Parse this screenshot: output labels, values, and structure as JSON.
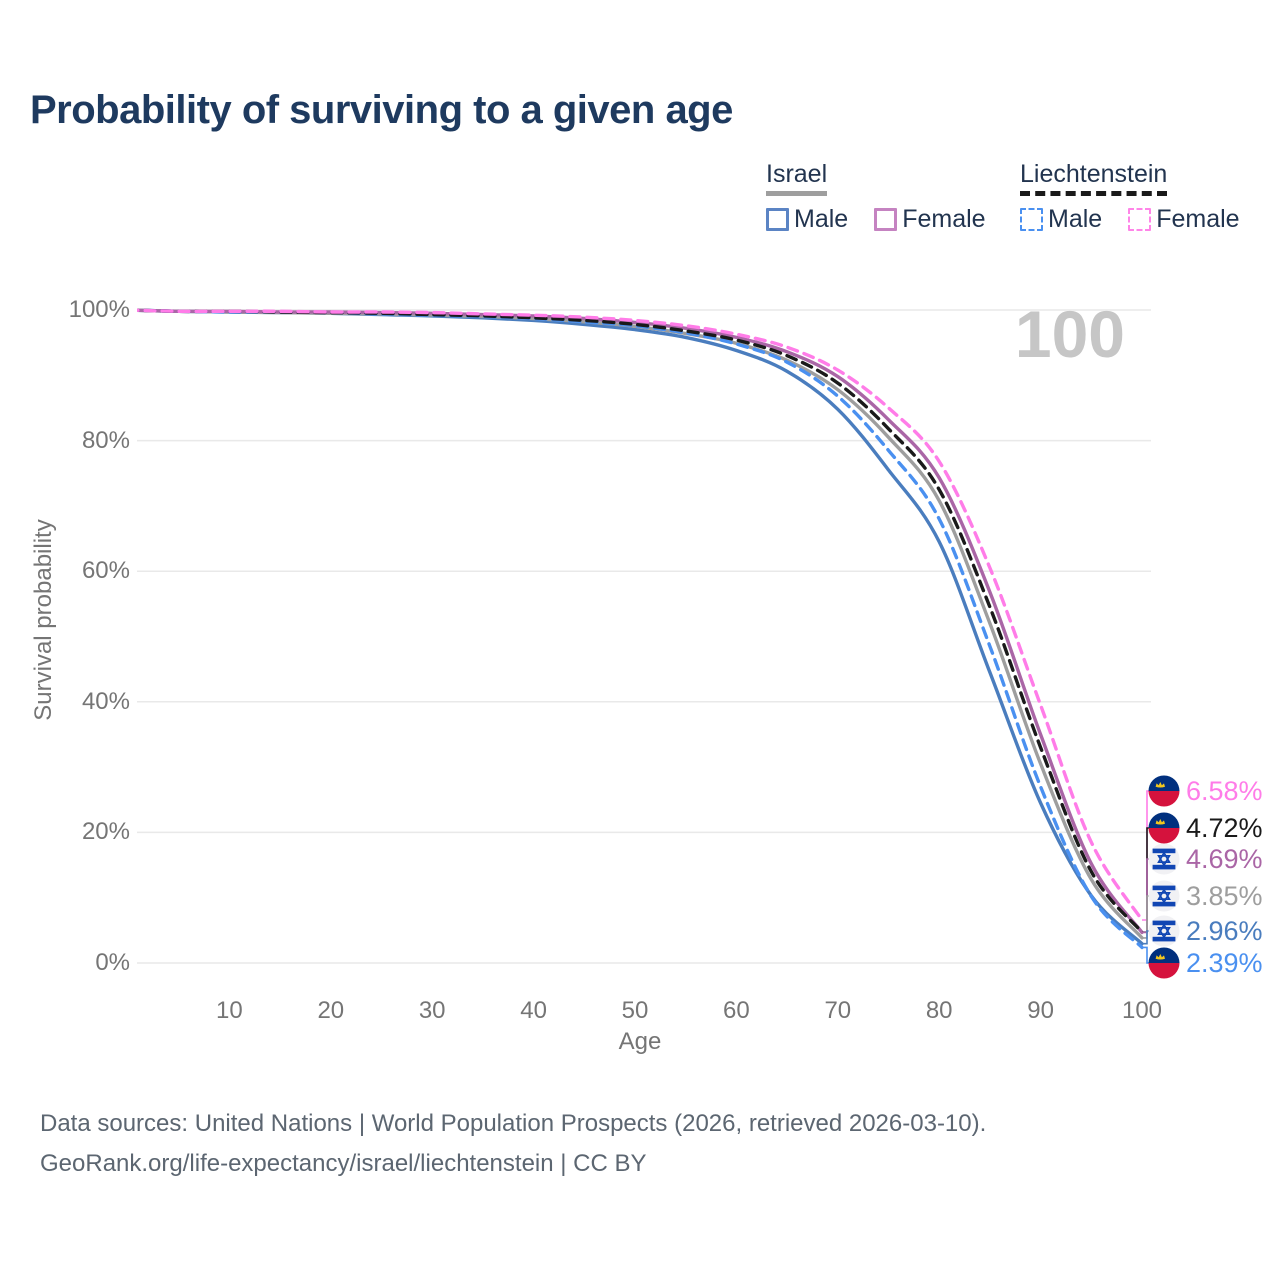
{
  "title": "Probability of surviving to a given age",
  "watermark": "100",
  "legend": {
    "groups": [
      {
        "name": "Israel",
        "line_style": "solid",
        "underline_color": "#9e9e9e",
        "items": [
          {
            "label": "Male",
            "color": "#5b84c4"
          },
          {
            "label": "Female",
            "color": "#c583c1"
          }
        ]
      },
      {
        "name": "Liechtenstein",
        "line_style": "dashed",
        "underline_color": "#1a1a1a",
        "items": [
          {
            "label": "Male",
            "color": "#4a90f0"
          },
          {
            "label": "Female",
            "color": "#ff85e8"
          }
        ]
      }
    ]
  },
  "chart_data": {
    "type": "line",
    "title": "Probability of surviving to a given age",
    "x_label": "Age",
    "y_label": "Survival probability",
    "xlim": [
      0,
      100
    ],
    "ylim": [
      0,
      100
    ],
    "grid": "horizontal",
    "legend_position": "top-right",
    "x_ticks": [
      10,
      20,
      30,
      40,
      50,
      60,
      70,
      80,
      90,
      100
    ],
    "y_ticks": [
      0,
      20,
      40,
      60,
      80,
      100
    ],
    "y_tick_suffix": "%",
    "x": [
      0,
      5,
      10,
      15,
      20,
      25,
      30,
      35,
      40,
      45,
      50,
      55,
      60,
      65,
      70,
      75,
      80,
      85,
      90,
      95,
      100
    ],
    "series": [
      {
        "id": "liechtenstein-female",
        "name": "Liechtenstein Female",
        "country": "Liechtenstein",
        "sex": "Female",
        "color": "#ff7ce8",
        "dash": "dashed",
        "flag": "liechtenstein",
        "end_label": "6.58%",
        "values": [
          100,
          99.8,
          99.8,
          99.8,
          99.7,
          99.7,
          99.6,
          99.4,
          99.2,
          98.9,
          98.4,
          97.6,
          96.3,
          94.3,
          90.8,
          85.0,
          76.8,
          60.5,
          39.5,
          18.5,
          6.58
        ]
      },
      {
        "id": "liechtenstein-all",
        "name": "Liechtenstein",
        "country": "Liechtenstein",
        "sex": "Both sexes",
        "color": "#1a1a1a",
        "dash": "dashed",
        "flag": "liechtenstein",
        "end_label": "4.72%",
        "values": [
          100,
          99.8,
          99.8,
          99.7,
          99.6,
          99.5,
          99.3,
          99.1,
          98.8,
          98.4,
          97.8,
          96.8,
          95.4,
          93.0,
          88.8,
          81.8,
          72.5,
          54.5,
          33.0,
          14.0,
          4.72
        ]
      },
      {
        "id": "israel-female",
        "name": "Israel Female",
        "country": "Israel",
        "sex": "Female",
        "color": "#aa66a6",
        "dash": "solid",
        "flag": "israel",
        "end_label": "4.69%",
        "values": [
          100,
          99.8,
          99.8,
          99.7,
          99.7,
          99.6,
          99.5,
          99.3,
          99.1,
          98.7,
          98.1,
          97.2,
          95.8,
          93.6,
          89.8,
          83.2,
          74.3,
          56.8,
          35.0,
          15.2,
          4.69
        ]
      },
      {
        "id": "israel-all",
        "name": "Israel",
        "country": "Israel",
        "sex": "Both sexes",
        "color": "#9e9e9e",
        "dash": "solid",
        "flag": "israel",
        "end_label": "3.85%",
        "values": [
          100,
          99.8,
          99.7,
          99.6,
          99.5,
          99.4,
          99.2,
          99.0,
          98.7,
          98.2,
          97.5,
          96.4,
          94.9,
          92.3,
          87.8,
          80.5,
          70.8,
          52.0,
          30.5,
          12.8,
          3.85
        ]
      },
      {
        "id": "israel-male",
        "name": "Israel Male",
        "country": "Israel",
        "sex": "Male",
        "color": "#4a7dbe",
        "dash": "solid",
        "flag": "israel",
        "end_label": "2.96%",
        "values": [
          100,
          99.8,
          99.7,
          99.6,
          99.5,
          99.3,
          99.1,
          98.8,
          98.4,
          97.8,
          97.0,
          95.8,
          93.8,
          90.6,
          84.8,
          75.5,
          64.5,
          44.5,
          24.5,
          10.3,
          2.96
        ]
      },
      {
        "id": "liechtenstein-male",
        "name": "Liechtenstein Male",
        "country": "Liechtenstein",
        "sex": "Male",
        "color": "#4a90f0",
        "dash": "dashed",
        "flag": "liechtenstein",
        "end_label": "2.39%",
        "values": [
          100,
          99.8,
          99.7,
          99.7,
          99.6,
          99.4,
          99.2,
          99.0,
          98.7,
          98.2,
          97.6,
          96.5,
          94.8,
          92.0,
          86.8,
          78.5,
          68.0,
          48.5,
          27.0,
          10.2,
          2.39
        ]
      }
    ]
  },
  "footer": {
    "line1": "Data sources: United Nations | World Population Prospects (2026, retrieved 2026-03-10).",
    "line2": "GeoRank.org/life-expectancy/israel/liechtenstein | CC BY"
  }
}
